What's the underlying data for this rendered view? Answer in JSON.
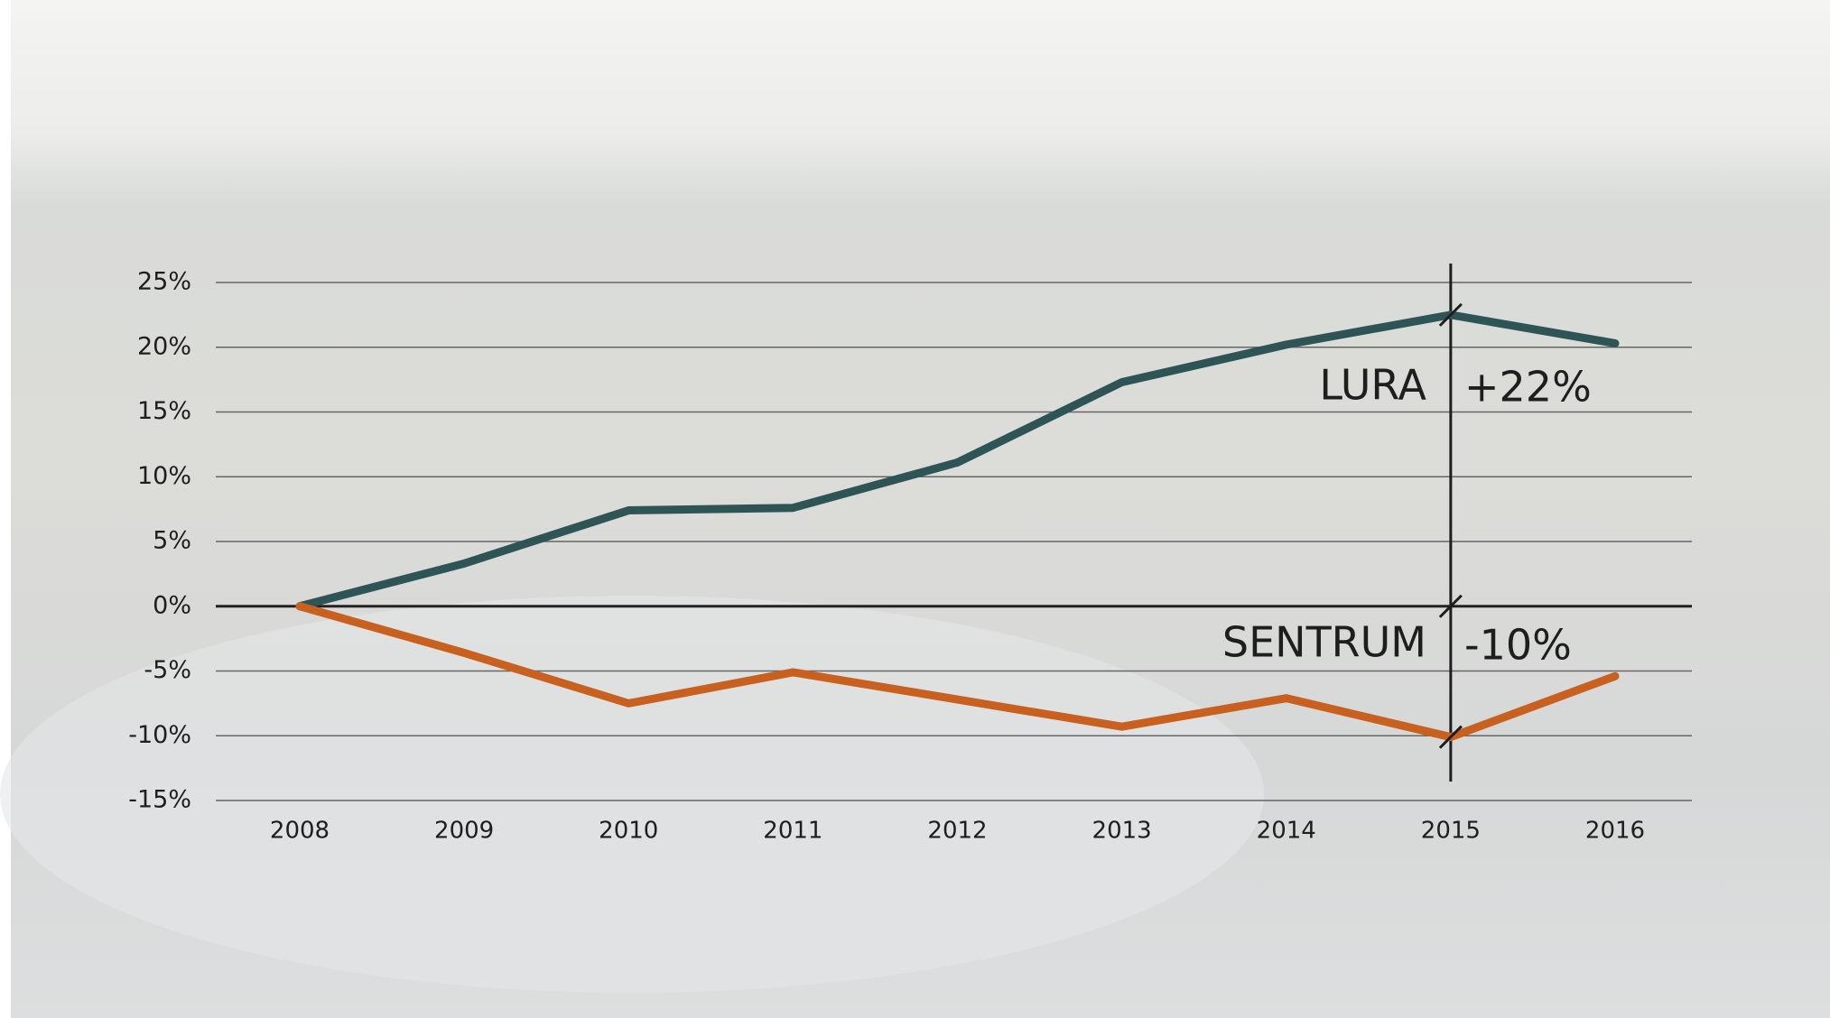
{
  "chart_data": {
    "type": "line",
    "categories": [
      "2008",
      "2009",
      "2010",
      "2011",
      "2012",
      "2013",
      "2014",
      "2015",
      "2016"
    ],
    "series": [
      {
        "name": "LURA",
        "color": "#2e5456",
        "values": [
          0,
          3.3,
          7.4,
          7.6,
          11.1,
          17.3,
          20.2,
          22.5,
          20.3
        ]
      },
      {
        "name": "SENTRUM",
        "color": "#c8611f",
        "values": [
          0,
          -3.6,
          -7.5,
          -5.1,
          -7.2,
          -9.3,
          -7.1,
          -10.1,
          -5.4
        ]
      }
    ],
    "annotations": [
      "+22%",
      "-10%"
    ],
    "ylim": [
      -15,
      25
    ],
    "yticks": [
      {
        "value": -15,
        "label": "-15%"
      },
      {
        "value": -10,
        "label": "-10%"
      },
      {
        "value": -5,
        "label": "-5%"
      },
      {
        "value": 0,
        "label": "0%"
      },
      {
        "value": 5,
        "label": "5%"
      },
      {
        "value": 10,
        "label": "10%"
      },
      {
        "value": 15,
        "label": "15%"
      },
      {
        "value": 20,
        "label": "20%"
      },
      {
        "value": 25,
        "label": "25%"
      }
    ],
    "grid": true
  }
}
